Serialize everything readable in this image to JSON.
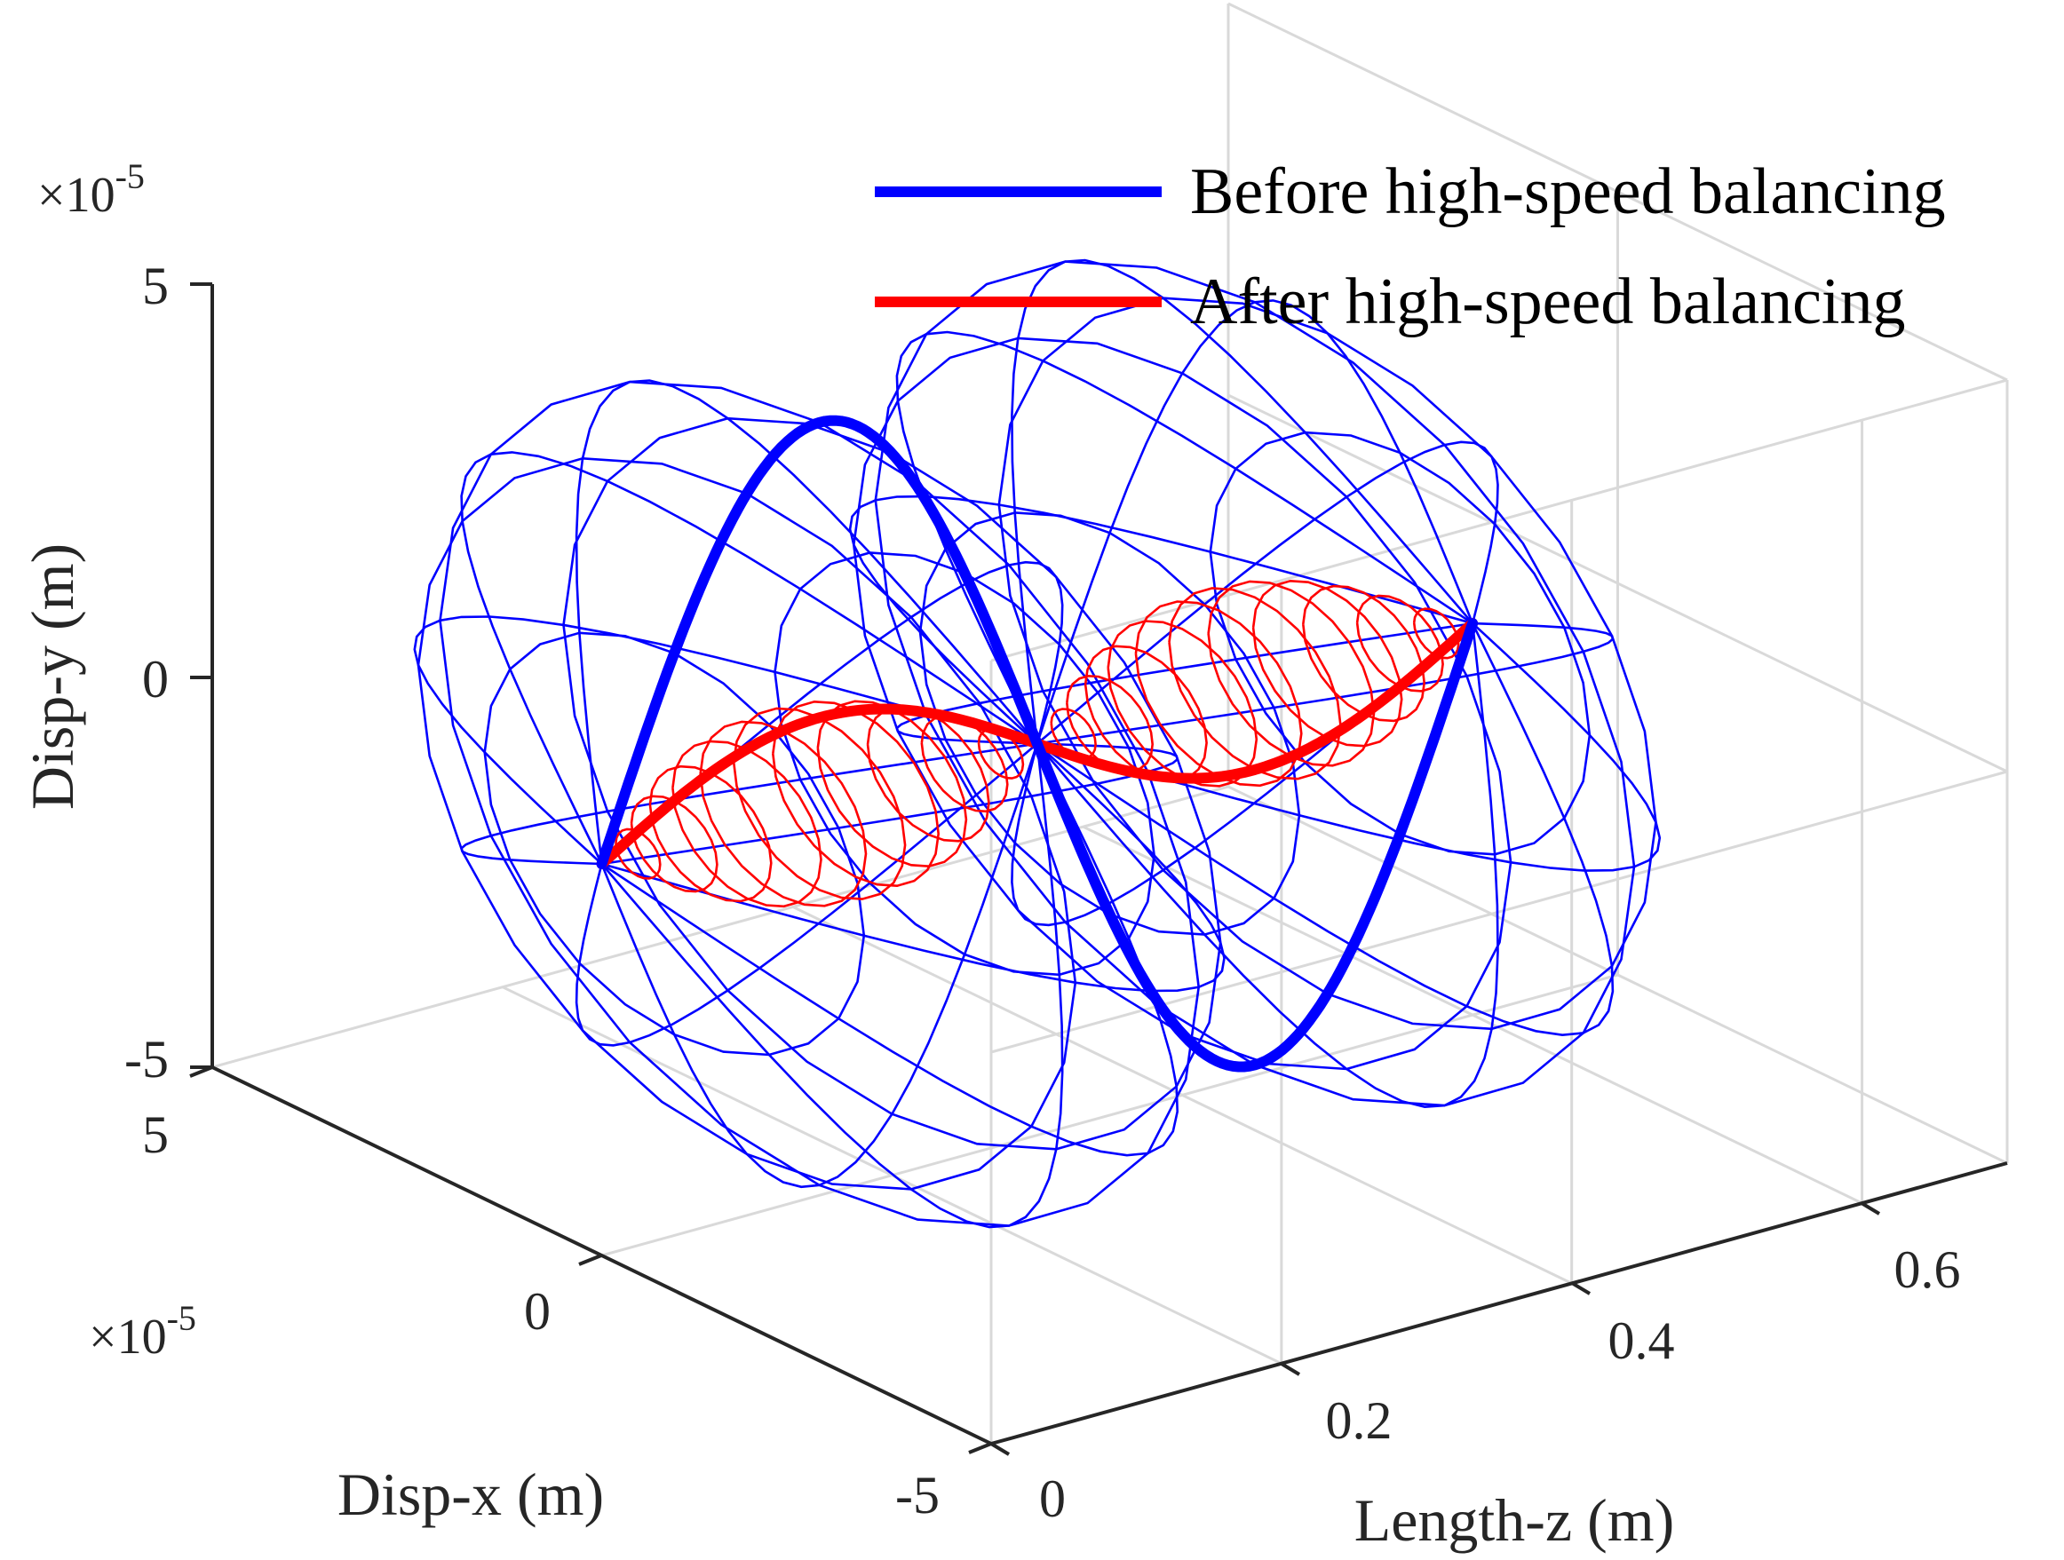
{
  "chart_data": {
    "type": "line3d",
    "title": "",
    "xlabel": "Disp-x (m)",
    "ylabel": "Disp-y (m)",
    "zlabel": "Length-z (m)",
    "x_multiplier": "×10",
    "x_multiplier_exp": "-5",
    "y_multiplier": "×10",
    "y_multiplier_exp": "-5",
    "x_ticks": [
      "5",
      "0",
      "-5"
    ],
    "y_ticks": [
      "5",
      "0",
      "-5"
    ],
    "z_ticks": [
      "0",
      "0.2",
      "0.4",
      "0.6"
    ],
    "xlim": [
      -5e-05,
      5e-05
    ],
    "ylim": [
      -5e-05,
      5e-05
    ],
    "zlim": [
      0,
      0.7
    ],
    "grid": true,
    "legend_position": "top-right",
    "series": [
      {
        "name": "Before high-speed balancing",
        "color": "#0000ff",
        "shape": "one full sine period along z (whirl envelope drawn as blue wireframe)",
        "z": [
          0.0,
          0.05,
          0.1,
          0.15,
          0.2,
          0.25,
          0.3,
          0.35,
          0.4,
          0.45,
          0.5,
          0.55,
          0.6,
          0.65
        ],
        "y": [
          0.0,
          2.59e-05,
          4.33e-05,
          4.87e-05,
          3.91e-05,
          2.17e-05,
          0.0,
          -2.17e-05,
          -3.91e-05,
          -4.87e-05,
          -4.33e-05,
          -2.59e-05,
          0.0,
          0.0
        ],
        "x": [
          0,
          0,
          0,
          0,
          0,
          0,
          0,
          0,
          0,
          0,
          0,
          0,
          0,
          0
        ]
      },
      {
        "name": "After high-speed balancing",
        "color": "#ff0000",
        "shape": "low-amplitude sine along z (whirl orbits drawn as red circles)",
        "z": [
          0.0,
          0.05,
          0.1,
          0.15,
          0.2,
          0.25,
          0.3,
          0.35,
          0.4,
          0.45,
          0.5,
          0.55,
          0.6,
          0.65
        ],
        "y": [
          0.0,
          5.6e-06,
          9.6e-06,
          1.1e-05,
          9e-06,
          4.8e-06,
          0.0,
          -4.8e-06,
          -9e-06,
          -1.1e-05,
          -9.6e-06,
          -5.6e-06,
          0.0,
          0.0
        ],
        "x": [
          0,
          0,
          0,
          0,
          0,
          0,
          0,
          0,
          0,
          0,
          0,
          0,
          0,
          0
        ]
      }
    ]
  }
}
